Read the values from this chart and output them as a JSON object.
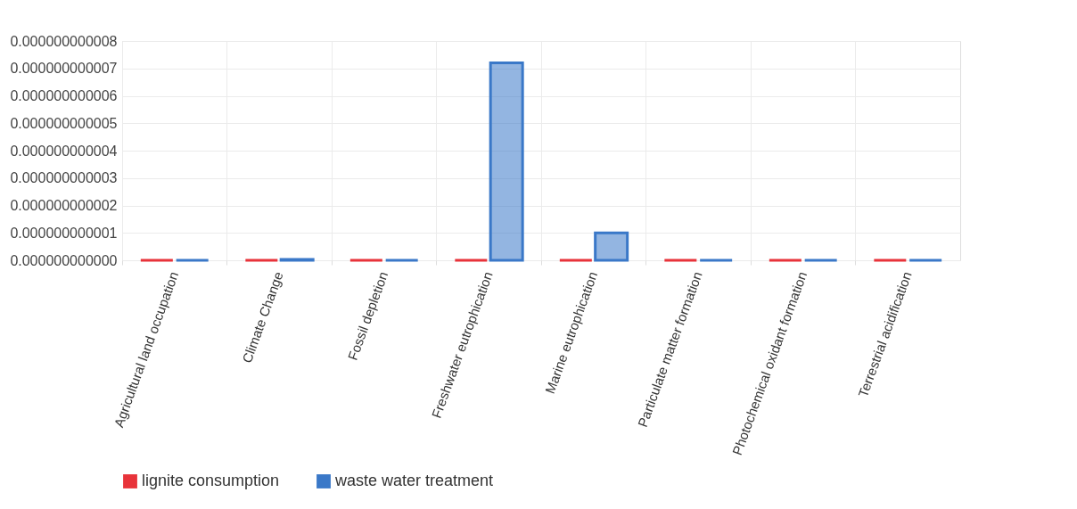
{
  "chart_data": {
    "type": "bar",
    "categories": [
      "Agricultural land occupation",
      "Climate Change",
      "Fossil depletion",
      "Freshwater eutrophication",
      "Marine eutrophication",
      "Particulate matter formation",
      "Photochemical oxidant formation",
      "Terrestrial acidification"
    ],
    "series": [
      {
        "name": "lignite consumption",
        "color": "#e8333a",
        "values": [
          0,
          0,
          0,
          0,
          0,
          0,
          0,
          0
        ]
      },
      {
        "name": "waste water treatment",
        "color": "#3a78c8",
        "values": [
          0,
          3e-14,
          0,
          7.2e-12,
          1e-12,
          0,
          0,
          0
        ]
      }
    ],
    "ylim": [
      0,
      8e-12
    ],
    "yticks": [
      {
        "value": 0,
        "label": "0.000000000000"
      },
      {
        "value": 1e-12,
        "label": "0.000000000001"
      },
      {
        "value": 2e-12,
        "label": "0.000000000002"
      },
      {
        "value": 3e-12,
        "label": "0.000000000003"
      },
      {
        "value": 4e-12,
        "label": "0.000000000004"
      },
      {
        "value": 5e-12,
        "label": "0.000000000005"
      },
      {
        "value": 6e-12,
        "label": "0.000000000006"
      },
      {
        "value": 7e-12,
        "label": "0.000000000007"
      },
      {
        "value": 8e-12,
        "label": "0.000000000008"
      }
    ],
    "grid": true,
    "legend": "bottom"
  }
}
